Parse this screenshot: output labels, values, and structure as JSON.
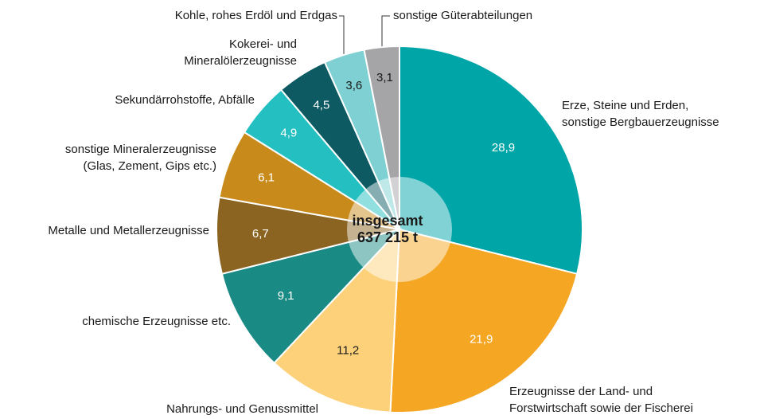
{
  "chart_data": {
    "type": "pie",
    "center_label": [
      "insgesamt",
      "637 215 t"
    ],
    "categories": [
      [
        "Erze, Steine und Erden,",
        "sonstige Bergbauerzeugnisse"
      ],
      [
        "Erzeugnisse der Land- und",
        "Forstwirtschaft sowie der Fischerei"
      ],
      [
        "Nahrungs- und Genussmittel"
      ],
      [
        "chemische Erzeugnisse etc."
      ],
      [
        "Metalle und Metallerzeugnisse"
      ],
      [
        "sonstige Mineralerzeugnisse",
        "(Glas, Zement, Gips etc.)"
      ],
      [
        "Sekundärrohstoffe, Abfälle"
      ],
      [
        "Kokerei- und",
        "Mineralölerzeugnisse"
      ],
      [
        "Kohle, rohes Erdöl und Erdgas"
      ],
      [
        "sonstige Güterabteilungen"
      ]
    ],
    "values": [
      28.9,
      21.9,
      11.2,
      9.1,
      6.7,
      6.1,
      4.9,
      4.5,
      3.6,
      3.1
    ],
    "value_labels": [
      "28,9",
      "21,9",
      "11,2",
      "9,1",
      "6,7",
      "6,1",
      "4,9",
      "4,5",
      "3,6",
      "3,1"
    ],
    "colors": [
      "#00a5a8",
      "#f5a623",
      "#fdd17a",
      "#1a8a84",
      "#8b6422",
      "#c88a1a",
      "#24bfc0",
      "#0d5a63",
      "#7fd0d2",
      "#a5a5a8"
    ]
  }
}
